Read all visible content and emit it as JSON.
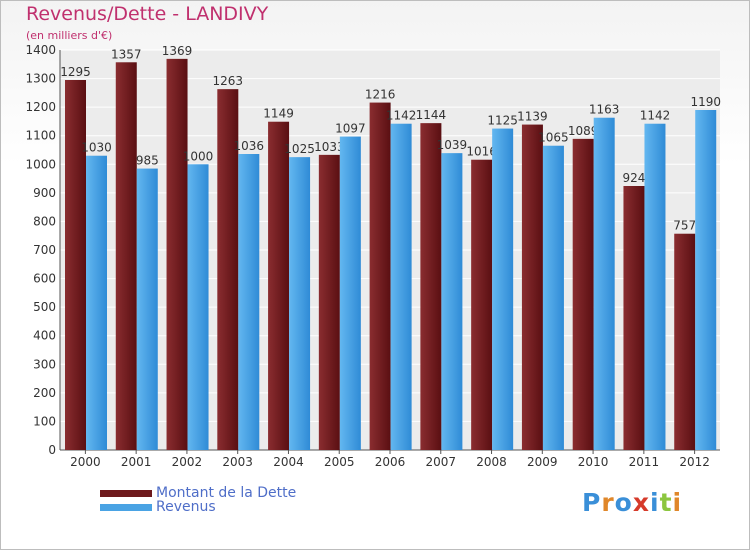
{
  "chart_data": {
    "type": "bar",
    "title": "Revenus/Dette - LANDIVY",
    "subtitle": "(en milliers d'€)",
    "categories": [
      "2000",
      "2001",
      "2002",
      "2003",
      "2004",
      "2005",
      "2006",
      "2007",
      "2008",
      "2009",
      "2010",
      "2011",
      "2012"
    ],
    "series": [
      {
        "name": "Montant de la Dette",
        "color": "#6e1a1c",
        "values": [
          1295,
          1357,
          1369,
          1263,
          1149,
          1033,
          1216,
          1144,
          1016,
          1139,
          1089,
          924,
          757
        ]
      },
      {
        "name": "Revenus",
        "color": "#4aa3e4",
        "values": [
          1030,
          985,
          1000,
          1036,
          1025,
          1097,
          1142,
          1039,
          1125,
          1065,
          1163,
          1142,
          1190
        ]
      }
    ],
    "data_labels": [
      [
        "1295",
        "1357",
        "1369",
        "1263",
        "1149",
        "1033",
        "1216",
        "1144",
        "1016",
        "1139",
        "1089",
        "924",
        "757"
      ],
      [
        "1030",
        "985",
        "1000",
        "1036",
        "1025",
        "1097",
        "1142",
        "1039",
        "1125",
        "1065",
        "1163",
        "1142",
        "1190"
      ]
    ],
    "ylim": [
      0,
      1400
    ],
    "yticks": [
      "0",
      "100",
      "200",
      "300",
      "400",
      "500",
      "600",
      "700",
      "800",
      "900",
      "1000",
      "1100",
      "1200",
      "1300",
      "1400"
    ],
    "grid": true,
    "legend_position": "bottom-left"
  },
  "logo": {
    "letters": [
      "P",
      "r",
      "o",
      "x",
      "i",
      "t",
      "i"
    ],
    "colors": [
      "#3a8fd8",
      "#e0872a",
      "#3a8fd8",
      "#d63a2a",
      "#3a8fd8",
      "#8cc63f",
      "#e0872a"
    ]
  }
}
